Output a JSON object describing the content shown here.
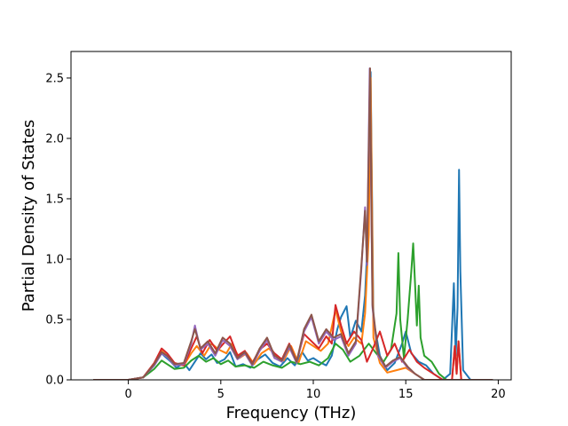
{
  "chart_data": {
    "type": "line",
    "title": "",
    "xlabel": "Frequency (THz)",
    "ylabel": "Partial Density of States",
    "xlim": [
      -3.1,
      20.7
    ],
    "ylim": [
      0.0,
      2.72
    ],
    "xticks": [
      0,
      5,
      10,
      15,
      20
    ],
    "yticks": [
      0.0,
      0.5,
      1.0,
      1.5,
      2.0,
      2.5
    ],
    "xtick_labels": [
      "0",
      "5",
      "10",
      "15",
      "20"
    ],
    "ytick_labels": [
      "0.0",
      "0.5",
      "1.0",
      "1.5",
      "2.0",
      "2.5"
    ],
    "grid": false,
    "legend": "none",
    "series": [
      {
        "color": "#1f77b4",
        "points": [
          [
            -1.9,
            0
          ],
          [
            0,
            0
          ],
          [
            0.8,
            0.02
          ],
          [
            1.4,
            0.12
          ],
          [
            1.8,
            0.22
          ],
          [
            2.0,
            0.19
          ],
          [
            2.3,
            0.15
          ],
          [
            2.6,
            0.1
          ],
          [
            3.0,
            0.14
          ],
          [
            3.3,
            0.08
          ],
          [
            3.6,
            0.15
          ],
          [
            3.9,
            0.22
          ],
          [
            4.2,
            0.17
          ],
          [
            4.5,
            0.21
          ],
          [
            4.8,
            0.14
          ],
          [
            5.2,
            0.17
          ],
          [
            5.5,
            0.23
          ],
          [
            5.8,
            0.11
          ],
          [
            6.2,
            0.13
          ],
          [
            6.6,
            0.1
          ],
          [
            7.0,
            0.17
          ],
          [
            7.4,
            0.21
          ],
          [
            7.8,
            0.14
          ],
          [
            8.2,
            0.11
          ],
          [
            8.6,
            0.18
          ],
          [
            9.0,
            0.12
          ],
          [
            9.4,
            0.23
          ],
          [
            9.7,
            0.16
          ],
          [
            10.0,
            0.18
          ],
          [
            10.3,
            0.15
          ],
          [
            10.7,
            0.12
          ],
          [
            11.0,
            0.2
          ],
          [
            11.3,
            0.42
          ],
          [
            11.5,
            0.52
          ],
          [
            11.8,
            0.61
          ],
          [
            12.0,
            0.35
          ],
          [
            12.3,
            0.49
          ],
          [
            12.6,
            0.4
          ],
          [
            12.8,
            0.7
          ],
          [
            13.0,
            1.38
          ],
          [
            13.1,
            2.55
          ],
          [
            13.25,
            0.5
          ],
          [
            13.6,
            0.2
          ],
          [
            14.0,
            0.08
          ],
          [
            14.4,
            0.14
          ],
          [
            14.8,
            0.3
          ],
          [
            15.0,
            0.4
          ],
          [
            15.3,
            0.22
          ],
          [
            15.7,
            0.15
          ],
          [
            16.1,
            0.12
          ],
          [
            16.5,
            0.05
          ],
          [
            17.0,
            0
          ],
          [
            17.4,
            0.05
          ],
          [
            17.6,
            0.8
          ],
          [
            17.7,
            0.2
          ],
          [
            17.8,
            0.6
          ],
          [
            17.88,
            1.74
          ],
          [
            17.95,
            0.9
          ],
          [
            18.1,
            0.08
          ],
          [
            18.5,
            0
          ],
          [
            19.7,
            0
          ]
        ]
      },
      {
        "color": "#ff7f0e",
        "points": [
          [
            -1.9,
            0
          ],
          [
            0,
            0
          ],
          [
            0.8,
            0.02
          ],
          [
            1.4,
            0.13
          ],
          [
            1.8,
            0.24
          ],
          [
            2.1,
            0.2
          ],
          [
            2.5,
            0.13
          ],
          [
            3.0,
            0.12
          ],
          [
            3.4,
            0.22
          ],
          [
            3.7,
            0.28
          ],
          [
            4.1,
            0.2
          ],
          [
            4.5,
            0.3
          ],
          [
            4.9,
            0.25
          ],
          [
            5.3,
            0.22
          ],
          [
            5.6,
            0.3
          ],
          [
            6.0,
            0.18
          ],
          [
            6.4,
            0.22
          ],
          [
            6.8,
            0.13
          ],
          [
            7.2,
            0.22
          ],
          [
            7.6,
            0.26
          ],
          [
            8.0,
            0.2
          ],
          [
            8.4,
            0.16
          ],
          [
            8.8,
            0.28
          ],
          [
            9.2,
            0.14
          ],
          [
            9.6,
            0.32
          ],
          [
            10.0,
            0.28
          ],
          [
            10.4,
            0.24
          ],
          [
            10.8,
            0.3
          ],
          [
            11.2,
            0.58
          ],
          [
            11.5,
            0.4
          ],
          [
            11.9,
            0.28
          ],
          [
            12.2,
            0.35
          ],
          [
            12.6,
            0.3
          ],
          [
            12.8,
            0.55
          ],
          [
            13.0,
            1.2
          ],
          [
            13.1,
            2.5
          ],
          [
            13.25,
            0.35
          ],
          [
            13.6,
            0.14
          ],
          [
            14.0,
            0.06
          ],
          [
            14.5,
            0.08
          ],
          [
            15.0,
            0.1
          ],
          [
            15.5,
            0.05
          ],
          [
            16.0,
            0
          ],
          [
            17.5,
            0
          ],
          [
            17.65,
            0.28
          ],
          [
            17.75,
            0.05
          ],
          [
            17.85,
            0.32
          ],
          [
            18.0,
            0
          ],
          [
            19.7,
            0
          ]
        ]
      },
      {
        "color": "#2ca02c",
        "points": [
          [
            -1.9,
            0
          ],
          [
            0,
            0
          ],
          [
            0.8,
            0.02
          ],
          [
            1.4,
            0.09
          ],
          [
            1.8,
            0.16
          ],
          [
            2.1,
            0.13
          ],
          [
            2.5,
            0.09
          ],
          [
            3.0,
            0.1
          ],
          [
            3.4,
            0.16
          ],
          [
            3.8,
            0.2
          ],
          [
            4.2,
            0.15
          ],
          [
            4.6,
            0.18
          ],
          [
            5.0,
            0.13
          ],
          [
            5.4,
            0.16
          ],
          [
            5.8,
            0.11
          ],
          [
            6.3,
            0.12
          ],
          [
            6.8,
            0.1
          ],
          [
            7.3,
            0.15
          ],
          [
            7.8,
            0.12
          ],
          [
            8.3,
            0.1
          ],
          [
            8.8,
            0.15
          ],
          [
            9.3,
            0.13
          ],
          [
            9.8,
            0.15
          ],
          [
            10.3,
            0.12
          ],
          [
            10.8,
            0.18
          ],
          [
            11.2,
            0.3
          ],
          [
            11.6,
            0.25
          ],
          [
            12.0,
            0.15
          ],
          [
            12.5,
            0.2
          ],
          [
            13.0,
            0.3
          ],
          [
            13.4,
            0.22
          ],
          [
            13.8,
            0.15
          ],
          [
            14.2,
            0.25
          ],
          [
            14.5,
            0.55
          ],
          [
            14.6,
            1.05
          ],
          [
            14.7,
            0.5
          ],
          [
            14.9,
            0.18
          ],
          [
            15.1,
            0.5
          ],
          [
            15.3,
            0.9
          ],
          [
            15.4,
            1.13
          ],
          [
            15.5,
            0.8
          ],
          [
            15.6,
            0.45
          ],
          [
            15.7,
            0.78
          ],
          [
            15.8,
            0.35
          ],
          [
            16.0,
            0.2
          ],
          [
            16.4,
            0.15
          ],
          [
            16.8,
            0.05
          ],
          [
            17.2,
            0
          ],
          [
            19.7,
            0
          ]
        ]
      },
      {
        "color": "#d62728",
        "points": [
          [
            -1.9,
            0
          ],
          [
            0,
            0
          ],
          [
            0.8,
            0.02
          ],
          [
            1.4,
            0.14
          ],
          [
            1.8,
            0.26
          ],
          [
            2.1,
            0.22
          ],
          [
            2.5,
            0.14
          ],
          [
            3.0,
            0.12
          ],
          [
            3.4,
            0.26
          ],
          [
            3.7,
            0.36
          ],
          [
            4.0,
            0.22
          ],
          [
            4.4,
            0.33
          ],
          [
            4.8,
            0.24
          ],
          [
            5.2,
            0.31
          ],
          [
            5.5,
            0.36
          ],
          [
            5.9,
            0.2
          ],
          [
            6.3,
            0.24
          ],
          [
            6.7,
            0.14
          ],
          [
            7.1,
            0.25
          ],
          [
            7.5,
            0.3
          ],
          [
            7.9,
            0.22
          ],
          [
            8.3,
            0.17
          ],
          [
            8.7,
            0.3
          ],
          [
            9.1,
            0.15
          ],
          [
            9.5,
            0.38
          ],
          [
            9.9,
            0.32
          ],
          [
            10.3,
            0.26
          ],
          [
            10.7,
            0.36
          ],
          [
            11.0,
            0.3
          ],
          [
            11.2,
            0.62
          ],
          [
            11.5,
            0.45
          ],
          [
            11.8,
            0.3
          ],
          [
            12.2,
            0.4
          ],
          [
            12.6,
            0.33
          ],
          [
            12.9,
            0.15
          ],
          [
            13.2,
            0.25
          ],
          [
            13.6,
            0.4
          ],
          [
            14.0,
            0.2
          ],
          [
            14.4,
            0.3
          ],
          [
            14.8,
            0.15
          ],
          [
            15.2,
            0.25
          ],
          [
            15.6,
            0.15
          ],
          [
            16.0,
            0.1
          ],
          [
            16.5,
            0.05
          ],
          [
            17.0,
            0
          ],
          [
            17.5,
            0
          ],
          [
            17.65,
            0.28
          ],
          [
            17.75,
            0.05
          ],
          [
            17.85,
            0.32
          ],
          [
            18.0,
            0
          ],
          [
            19.7,
            0
          ]
        ]
      },
      {
        "color": "#9467bd",
        "points": [
          [
            -1.9,
            0
          ],
          [
            0,
            0
          ],
          [
            0.8,
            0.02
          ],
          [
            1.4,
            0.12
          ],
          [
            1.8,
            0.22
          ],
          [
            2.1,
            0.19
          ],
          [
            2.5,
            0.12
          ],
          [
            3.0,
            0.13
          ],
          [
            3.4,
            0.3
          ],
          [
            3.6,
            0.45
          ],
          [
            3.9,
            0.25
          ],
          [
            4.3,
            0.3
          ],
          [
            4.7,
            0.2
          ],
          [
            5.1,
            0.33
          ],
          [
            5.5,
            0.28
          ],
          [
            5.9,
            0.17
          ],
          [
            6.3,
            0.22
          ],
          [
            6.7,
            0.12
          ],
          [
            7.1,
            0.24
          ],
          [
            7.5,
            0.33
          ],
          [
            7.9,
            0.18
          ],
          [
            8.3,
            0.15
          ],
          [
            8.7,
            0.27
          ],
          [
            9.1,
            0.14
          ],
          [
            9.5,
            0.4
          ],
          [
            9.9,
            0.52
          ],
          [
            10.3,
            0.3
          ],
          [
            10.7,
            0.4
          ],
          [
            11.1,
            0.33
          ],
          [
            11.5,
            0.36
          ],
          [
            11.9,
            0.2
          ],
          [
            12.3,
            0.3
          ],
          [
            12.6,
            0.92
          ],
          [
            12.8,
            1.43
          ],
          [
            12.9,
            0.95
          ],
          [
            13.05,
            2.58
          ],
          [
            13.2,
            0.6
          ],
          [
            13.5,
            0.2
          ],
          [
            13.9,
            0.1
          ],
          [
            14.3,
            0.15
          ],
          [
            14.7,
            0.18
          ],
          [
            15.1,
            0.1
          ],
          [
            15.5,
            0.05
          ],
          [
            16.0,
            0
          ],
          [
            19.7,
            0
          ]
        ]
      },
      {
        "color": "#8c564b",
        "points": [
          [
            -1.9,
            0
          ],
          [
            0,
            0
          ],
          [
            0.8,
            0.02
          ],
          [
            1.4,
            0.13
          ],
          [
            1.8,
            0.23
          ],
          [
            2.1,
            0.2
          ],
          [
            2.5,
            0.13
          ],
          [
            3.0,
            0.14
          ],
          [
            3.4,
            0.32
          ],
          [
            3.6,
            0.42
          ],
          [
            3.9,
            0.26
          ],
          [
            4.3,
            0.32
          ],
          [
            4.7,
            0.22
          ],
          [
            5.1,
            0.35
          ],
          [
            5.5,
            0.3
          ],
          [
            5.9,
            0.18
          ],
          [
            6.3,
            0.23
          ],
          [
            6.7,
            0.13
          ],
          [
            7.1,
            0.26
          ],
          [
            7.5,
            0.35
          ],
          [
            7.9,
            0.2
          ],
          [
            8.3,
            0.16
          ],
          [
            8.7,
            0.29
          ],
          [
            9.1,
            0.15
          ],
          [
            9.5,
            0.42
          ],
          [
            9.9,
            0.54
          ],
          [
            10.3,
            0.32
          ],
          [
            10.7,
            0.42
          ],
          [
            11.1,
            0.35
          ],
          [
            11.5,
            0.38
          ],
          [
            11.9,
            0.22
          ],
          [
            12.3,
            0.32
          ],
          [
            12.6,
            0.95
          ],
          [
            12.8,
            1.4
          ],
          [
            12.9,
            0.98
          ],
          [
            13.07,
            2.58
          ],
          [
            13.2,
            0.62
          ],
          [
            13.5,
            0.22
          ],
          [
            13.9,
            0.11
          ],
          [
            14.3,
            0.16
          ],
          [
            14.7,
            0.19
          ],
          [
            15.1,
            0.11
          ],
          [
            15.5,
            0.05
          ],
          [
            16.0,
            0
          ],
          [
            19.7,
            0
          ]
        ]
      }
    ]
  }
}
